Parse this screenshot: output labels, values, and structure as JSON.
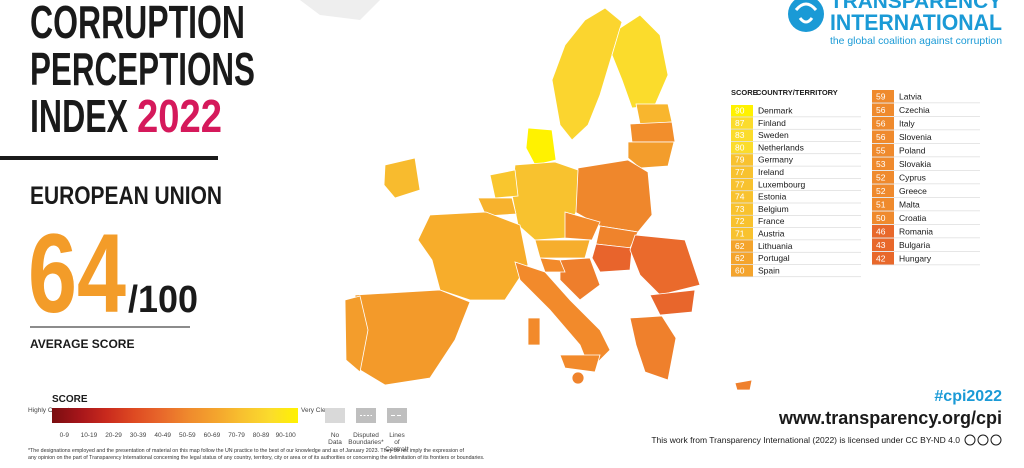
{
  "header": {
    "title_lines": [
      "CORRUPTION",
      "PERCEPTIONS",
      "INDEX"
    ],
    "year": "2022"
  },
  "region": "EUROPEAN UNION",
  "average": {
    "score": 64,
    "max": "/100",
    "label": "AVERAGE SCORE"
  },
  "legend": {
    "title": "SCORE",
    "low_label": "Highly Corrupt",
    "high_label": "Very Clean",
    "bins": [
      "0-9",
      "10-19",
      "20-29",
      "30-39",
      "40-49",
      "50-59",
      "60-69",
      "70-79",
      "80-89",
      "90-100"
    ],
    "colors": [
      "#7a0d10",
      "#a5151a",
      "#c92a1d",
      "#de4a22",
      "#e8682b",
      "#ef8a2d",
      "#f4a42d",
      "#f8c22f",
      "#fbdc2c",
      "#fff200"
    ],
    "extras": [
      "No Data",
      "Disputed Boundaries*",
      "Lines of Control*"
    ]
  },
  "disclaimer": "*The designations employed and the presentation of material on this map follow the UN practice to the best of our knowledge and as of January 2023. They do not imply the expression of any opinion on the part of Transparency International concerning the legal status of any country, territory, city or area or of its authorities or concerning the delimitation of its frontiers or boundaries.",
  "logo": {
    "line1": "TRANSPARENCY",
    "line2": "INTERNATIONAL",
    "tagline": "the global coalition against corruption"
  },
  "table": {
    "headers": [
      "SCORE",
      "COUNTRY/TERRITORY"
    ],
    "rows": [
      [
        90,
        "Denmark"
      ],
      [
        87,
        "Finland"
      ],
      [
        83,
        "Sweden"
      ],
      [
        80,
        "Netherlands"
      ],
      [
        79,
        "Germany"
      ],
      [
        77,
        "Ireland"
      ],
      [
        77,
        "Luxembourg"
      ],
      [
        74,
        "Estonia"
      ],
      [
        73,
        "Belgium"
      ],
      [
        72,
        "France"
      ],
      [
        71,
        "Austria"
      ],
      [
        62,
        "Lithuania"
      ],
      [
        62,
        "Portugal"
      ],
      [
        60,
        "Spain"
      ],
      [
        59,
        "Latvia"
      ],
      [
        56,
        "Czechia"
      ],
      [
        56,
        "Italy"
      ],
      [
        56,
        "Slovenia"
      ],
      [
        55,
        "Poland"
      ],
      [
        53,
        "Slovakia"
      ],
      [
        52,
        "Cyprus"
      ],
      [
        52,
        "Greece"
      ],
      [
        51,
        "Malta"
      ],
      [
        50,
        "Croatia"
      ],
      [
        46,
        "Romania"
      ],
      [
        43,
        "Bulgaria"
      ],
      [
        42,
        "Hungary"
      ]
    ]
  },
  "footer": {
    "hashtag": "#cpi2022",
    "url": "www.transparency.org/cpi",
    "license": "This work from Transparency International (2022) is licensed under CC BY-ND 4.0"
  }
}
